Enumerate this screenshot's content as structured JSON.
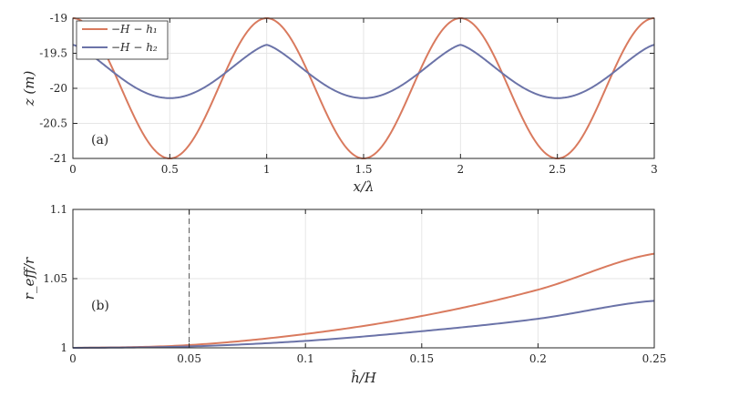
{
  "colors": {
    "series1": "#d97a5e",
    "series2": "#6b73a8",
    "axis": "#262626",
    "grid": "#e6e6e6"
  },
  "chart_data": [
    {
      "type": "line",
      "panel": "(a)",
      "xlabel": "x/λ",
      "ylabel": "z (m)",
      "xlim": [
        0,
        3
      ],
      "ylim": [
        -21,
        -19
      ],
      "xticks": [
        0,
        0.5,
        1,
        1.5,
        2,
        2.5,
        3
      ],
      "xtick_labels": [
        "0",
        "0.5",
        "1",
        "1.5",
        "2",
        "2.5",
        "3"
      ],
      "yticks": [
        -21,
        -20.5,
        -20,
        -19.5,
        -19
      ],
      "ytick_labels": [
        "-21",
        "-20.5",
        "-20",
        "-19.5",
        "-19"
      ],
      "grid": true,
      "legend": "top-left",
      "series": [
        {
          "name": "−H − h₁",
          "color": "#d97a5e",
          "shape": "cosine",
          "amplitude": 1.0,
          "mean": -20,
          "period": 1
        },
        {
          "name": "−H − h₂",
          "color": "#6b73a8",
          "shape": "cusped",
          "amplitude": 0.76,
          "mean": -19.76,
          "period": 1
        }
      ]
    },
    {
      "type": "line",
      "panel": "(b)",
      "xlabel": "ĥ/H",
      "ylabel": "r_eff/r",
      "xlim": [
        0,
        0.25
      ],
      "ylim": [
        1,
        1.1
      ],
      "xticks": [
        0,
        0.05,
        0.1,
        0.15,
        0.2,
        0.25
      ],
      "xtick_labels": [
        "0",
        "0.05",
        "0.1",
        "0.15",
        "0.2",
        "0.25"
      ],
      "yticks": [
        1,
        1.05,
        1.1
      ],
      "ytick_labels": [
        "1",
        "1.05",
        "1.1"
      ],
      "grid": true,
      "vline_x": 0.05,
      "series": [
        {
          "color": "#d97a5e",
          "x": [
            0,
            0.05,
            0.1,
            0.15,
            0.2,
            0.25
          ],
          "y": [
            1.0,
            1.002,
            1.01,
            1.023,
            1.042,
            1.068
          ]
        },
        {
          "color": "#6b73a8",
          "x": [
            0,
            0.05,
            0.1,
            0.15,
            0.2,
            0.25
          ],
          "y": [
            1.0,
            1.001,
            1.005,
            1.012,
            1.021,
            1.034
          ]
        }
      ]
    }
  ]
}
